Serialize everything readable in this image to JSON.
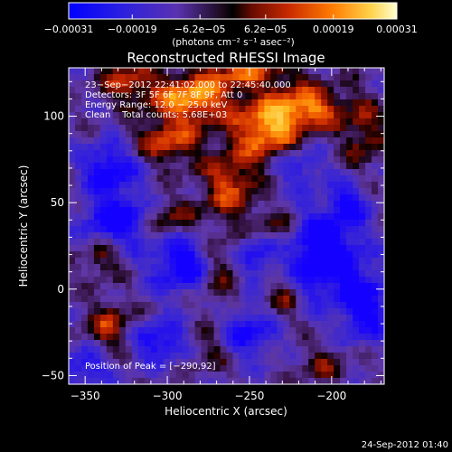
{
  "chart_data": {
    "type": "heatmap",
    "title": "Reconstructed RHESSI Image",
    "xlabel": "Heliocentric X (arcsec)",
    "ylabel": "Heliocentric Y (arcsec)",
    "xlim": [
      -360,
      -168
    ],
    "ylim": [
      -55,
      128
    ],
    "x_ticks": [
      -350,
      -300,
      -250,
      -200
    ],
    "x_tick_labels": [
      "−350",
      "−300",
      "−250",
      "−200"
    ],
    "y_ticks": [
      -50,
      0,
      50,
      100
    ],
    "y_tick_labels": [
      "−50",
      "0",
      "50",
      "100"
    ],
    "colorbar": {
      "min": -0.00031,
      "max": 0.00031,
      "ticks": [
        -0.00031,
        -0.00019,
        -6.2e-05,
        6.2e-05,
        0.00019,
        0.00031
      ],
      "tick_labels": [
        "−0.00031",
        "−0.00019",
        "−6.2e−05",
        "6.2e−05",
        "0.00019",
        "0.00031"
      ],
      "unit_label": "(photons cm⁻² s⁻¹ asec⁻²)",
      "colors": [
        "#0000ff",
        "#3c2bd0",
        "#6a3aa5",
        "#000000",
        "#9e1a00",
        "#e84b00",
        "#ffa300",
        "#ffff9a"
      ]
    },
    "annotations": {
      "time_range": "23−Sep−2012 22:41:02.000 to 22:45:40.000",
      "detectors": "Detectors: 3F 5F 6F 7F 8F 9F, Att 0",
      "energy_range": "Energy Range: 12.0 − 25.0 keV",
      "method": "Clean    Total counts: 5.68E+03",
      "peak": "Position of Peak = [−290,92]"
    },
    "sources": [
      {
        "x": -285,
        "y": 110,
        "w": 18,
        "h": 10,
        "amp": 1.0
      },
      {
        "x": -240,
        "y": 92,
        "w": 14,
        "h": 12,
        "amp": 0.95
      },
      {
        "x": -215,
        "y": 105,
        "w": 16,
        "h": 9,
        "amp": 0.9
      },
      {
        "x": -300,
        "y": 85,
        "w": 14,
        "h": 9,
        "amp": 0.7
      },
      {
        "x": -325,
        "y": 120,
        "w": 12,
        "h": 8,
        "amp": 0.6
      },
      {
        "x": -262,
        "y": 60,
        "w": 12,
        "h": 14,
        "amp": 0.7
      },
      {
        "x": -300,
        "y": 40,
        "w": 12,
        "h": 8,
        "amp": 0.55
      },
      {
        "x": -235,
        "y": 35,
        "w": 10,
        "h": 8,
        "amp": 0.5
      },
      {
        "x": -270,
        "y": 10,
        "w": 9,
        "h": 16,
        "amp": 0.5
      },
      {
        "x": -230,
        "y": -5,
        "w": 8,
        "h": 12,
        "amp": 0.45
      },
      {
        "x": -335,
        "y": -22,
        "w": 10,
        "h": 10,
        "amp": 0.6
      },
      {
        "x": -340,
        "y": 18,
        "w": 8,
        "h": 8,
        "amp": 0.45
      },
      {
        "x": -205,
        "y": -45,
        "w": 12,
        "h": 8,
        "amp": 0.35
      },
      {
        "x": -250,
        "y": 125,
        "w": 20,
        "h": 6,
        "amp": 0.65
      },
      {
        "x": -180,
        "y": 90,
        "w": 9,
        "h": 14,
        "amp": 0.5
      },
      {
        "x": -275,
        "y": -35,
        "w": 10,
        "h": 8,
        "amp": 0.35
      },
      {
        "x": -335,
        "y": 70,
        "w": 12,
        "h": 10,
        "amp": -0.8
      },
      {
        "x": -330,
        "y": 40,
        "w": 14,
        "h": 10,
        "amp": -0.9
      },
      {
        "x": -290,
        "y": 15,
        "w": 14,
        "h": 12,
        "amp": -0.85
      },
      {
        "x": -205,
        "y": 20,
        "w": 16,
        "h": 18,
        "amp": -1.0
      },
      {
        "x": -250,
        "y": -25,
        "w": 12,
        "h": 10,
        "amp": -0.7
      },
      {
        "x": -305,
        "y": -30,
        "w": 12,
        "h": 8,
        "amp": -0.75
      },
      {
        "x": -180,
        "y": -10,
        "w": 10,
        "h": 14,
        "amp": -0.8
      },
      {
        "x": -245,
        "y": 20,
        "w": 8,
        "h": 10,
        "amp": -0.6
      },
      {
        "x": -220,
        "y": 70,
        "w": 10,
        "h": 8,
        "amp": -0.5
      },
      {
        "x": -350,
        "y": -45,
        "w": 10,
        "h": 8,
        "amp": -0.6
      },
      {
        "x": -190,
        "y": 50,
        "w": 8,
        "h": 8,
        "amp": -0.6
      }
    ]
  },
  "footer": {
    "timestamp": "24-Sep-2012 01:40"
  }
}
